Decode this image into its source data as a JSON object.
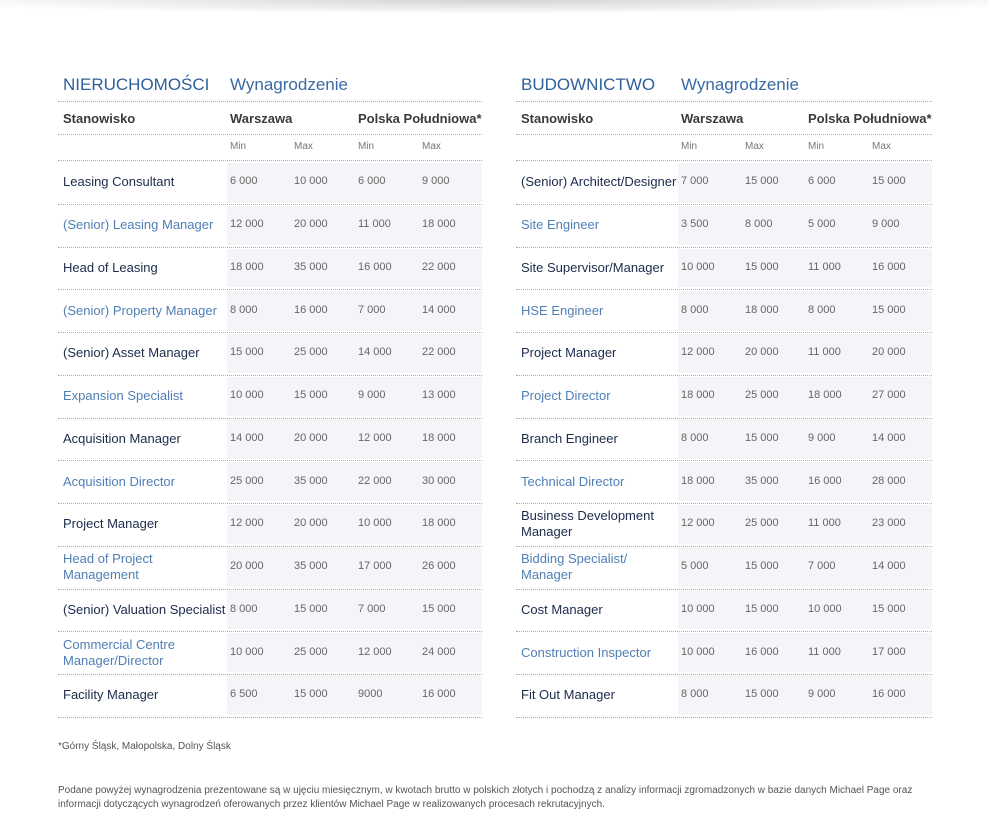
{
  "tables": [
    {
      "title": "NIERUCHOMOŚCI",
      "subtitle": "Wynagrodzenie",
      "columns": [
        "Stanowisko",
        "Warszawa",
        "Polska Południowa*"
      ],
      "subcolumns": [
        "Min",
        "Max",
        "Min",
        "Max"
      ],
      "rows": [
        [
          "Leasing Consultant",
          "6 000",
          "10 000",
          "6 000",
          "9 000"
        ],
        [
          "(Senior) Leasing Manager",
          "12 000",
          "20 000",
          "11 000",
          "18 000"
        ],
        [
          "Head of Leasing",
          "18 000",
          "35 000",
          "16 000",
          "22 000"
        ],
        [
          "(Senior) Property Manager",
          "8 000",
          "16 000",
          "7 000",
          "14 000"
        ],
        [
          "(Senior) Asset Manager",
          "15 000",
          "25 000",
          "14 000",
          "22 000"
        ],
        [
          "Expansion Specialist",
          "10 000",
          "15 000",
          "9 000",
          "13 000"
        ],
        [
          "Acquisition Manager",
          "14 000",
          "20 000",
          "12 000",
          "18 000"
        ],
        [
          "Acquisition Director",
          "25 000",
          "35 000",
          "22 000",
          "30 000"
        ],
        [
          "Project Manager",
          "12 000",
          "20 000",
          "10 000",
          "18 000"
        ],
        [
          "Head of Project\nManagement",
          "20 000",
          "35 000",
          "17 000",
          "26 000"
        ],
        [
          "(Senior) Valuation Specialist",
          "8 000",
          "15 000",
          "7 000",
          "15 000"
        ],
        [
          "Commercial Centre\nManager/Director",
          "10 000",
          "25 000",
          "12 000",
          "24 000"
        ],
        [
          "Facility Manager",
          "6 500",
          "15 000",
          "9000",
          "16 000"
        ]
      ]
    },
    {
      "title": "BUDOWNICTWO",
      "subtitle": "Wynagrodzenie",
      "columns": [
        "Stanowisko",
        "Warszawa",
        "Polska Południowa*"
      ],
      "subcolumns": [
        "Min",
        "Max",
        "Min",
        "Max"
      ],
      "rows": [
        [
          "(Senior) Architect/Designer",
          "7 000",
          "15 000",
          "6 000",
          "15 000"
        ],
        [
          "Site Engineer",
          "3 500",
          "8 000",
          "5 000",
          "9 000"
        ],
        [
          "Site Supervisor/Manager",
          "10 000",
          "15 000",
          "11 000",
          "16 000"
        ],
        [
          "HSE Engineer",
          "8 000",
          "18 000",
          "8 000",
          "15 000"
        ],
        [
          "Project Manager",
          "12 000",
          "20 000",
          "11 000",
          "20 000"
        ],
        [
          "Project Director",
          "18 000",
          "25 000",
          "18 000",
          "27 000"
        ],
        [
          "Branch Engineer",
          "8 000",
          "15 000",
          "9 000",
          "14 000"
        ],
        [
          "Technical Director",
          "18 000",
          "35 000",
          "16 000",
          "28 000"
        ],
        [
          "Business Development\nManager",
          "12 000",
          "25 000",
          "11 000",
          "23 000"
        ],
        [
          "Bidding Specialist/\nManager",
          "5 000",
          "15 000",
          "7 000",
          "14 000"
        ],
        [
          "Cost Manager",
          "10 000",
          "15 000",
          "10 000",
          "15 000"
        ],
        [
          "Construction Inspector",
          "10 000",
          "16 000",
          "11 000",
          "17 000"
        ],
        [
          "Fit Out Manager",
          "8 000",
          "15 000",
          "9 000",
          "16 000"
        ]
      ]
    }
  ],
  "footnote": "*Górny Śląsk, Małopolska, Dolny Śląsk",
  "note": "Podane powyżej wynagrodzenia prezentowane są w ujęciu miesięcznym, w kwotach brutto w polskich złotych i pochodzą z analizy informacji zgromadzonych w bazie danych Michael Page oraz informacji dotyczących wynagrodzeń oferowanych przez klientów Michael Page w realizowanych procesach rekrutacyjnych."
}
